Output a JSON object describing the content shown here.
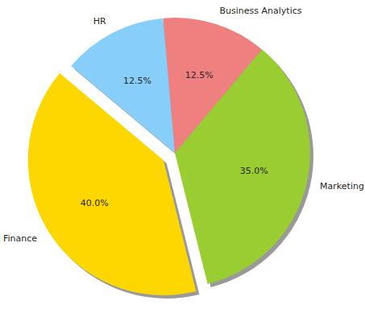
{
  "chart_data": {
    "type": "pie",
    "categories": [
      "Finance",
      "Marketing",
      "Business Analytics",
      "HR"
    ],
    "values": [
      40,
      35,
      12.5,
      12.5
    ],
    "value_labels": [
      "40.0%",
      "35.0%",
      "12.5%",
      "12.5%"
    ],
    "colors": [
      "#ffd700",
      "#9acd32",
      "#f08080",
      "#87cefa"
    ],
    "data_labels": true
  }
}
